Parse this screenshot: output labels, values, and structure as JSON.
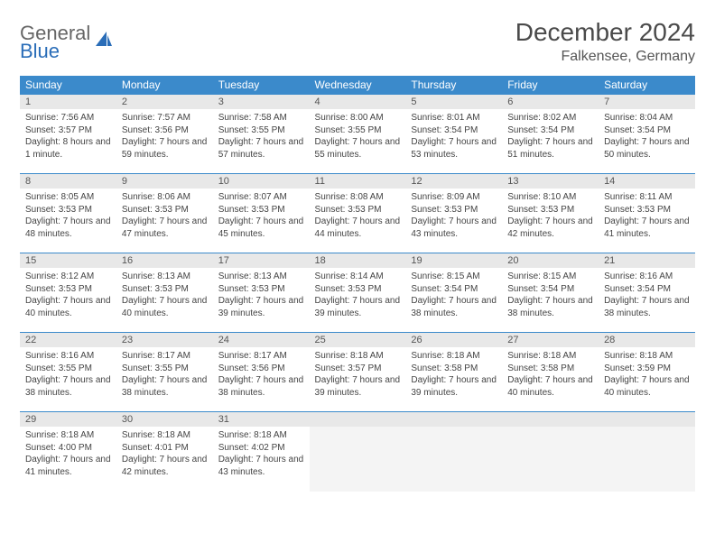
{
  "logo": {
    "line1": "General",
    "line2": "Blue"
  },
  "title": "December 2024",
  "location": "Falkensee, Germany",
  "colors": {
    "header_bg": "#3b8acb",
    "header_text": "#ffffff",
    "daynum_bg": "#e8e8e8",
    "border": "#3b8acb",
    "logo_gray": "#666666",
    "logo_blue": "#2a6db8"
  },
  "day_headers": [
    "Sunday",
    "Monday",
    "Tuesday",
    "Wednesday",
    "Thursday",
    "Friday",
    "Saturday"
  ],
  "weeks": [
    [
      {
        "num": "1",
        "sunrise": "Sunrise: 7:56 AM",
        "sunset": "Sunset: 3:57 PM",
        "daylight": "Daylight: 8 hours and 1 minute."
      },
      {
        "num": "2",
        "sunrise": "Sunrise: 7:57 AM",
        "sunset": "Sunset: 3:56 PM",
        "daylight": "Daylight: 7 hours and 59 minutes."
      },
      {
        "num": "3",
        "sunrise": "Sunrise: 7:58 AM",
        "sunset": "Sunset: 3:55 PM",
        "daylight": "Daylight: 7 hours and 57 minutes."
      },
      {
        "num": "4",
        "sunrise": "Sunrise: 8:00 AM",
        "sunset": "Sunset: 3:55 PM",
        "daylight": "Daylight: 7 hours and 55 minutes."
      },
      {
        "num": "5",
        "sunrise": "Sunrise: 8:01 AM",
        "sunset": "Sunset: 3:54 PM",
        "daylight": "Daylight: 7 hours and 53 minutes."
      },
      {
        "num": "6",
        "sunrise": "Sunrise: 8:02 AM",
        "sunset": "Sunset: 3:54 PM",
        "daylight": "Daylight: 7 hours and 51 minutes."
      },
      {
        "num": "7",
        "sunrise": "Sunrise: 8:04 AM",
        "sunset": "Sunset: 3:54 PM",
        "daylight": "Daylight: 7 hours and 50 minutes."
      }
    ],
    [
      {
        "num": "8",
        "sunrise": "Sunrise: 8:05 AM",
        "sunset": "Sunset: 3:53 PM",
        "daylight": "Daylight: 7 hours and 48 minutes."
      },
      {
        "num": "9",
        "sunrise": "Sunrise: 8:06 AM",
        "sunset": "Sunset: 3:53 PM",
        "daylight": "Daylight: 7 hours and 47 minutes."
      },
      {
        "num": "10",
        "sunrise": "Sunrise: 8:07 AM",
        "sunset": "Sunset: 3:53 PM",
        "daylight": "Daylight: 7 hours and 45 minutes."
      },
      {
        "num": "11",
        "sunrise": "Sunrise: 8:08 AM",
        "sunset": "Sunset: 3:53 PM",
        "daylight": "Daylight: 7 hours and 44 minutes."
      },
      {
        "num": "12",
        "sunrise": "Sunrise: 8:09 AM",
        "sunset": "Sunset: 3:53 PM",
        "daylight": "Daylight: 7 hours and 43 minutes."
      },
      {
        "num": "13",
        "sunrise": "Sunrise: 8:10 AM",
        "sunset": "Sunset: 3:53 PM",
        "daylight": "Daylight: 7 hours and 42 minutes."
      },
      {
        "num": "14",
        "sunrise": "Sunrise: 8:11 AM",
        "sunset": "Sunset: 3:53 PM",
        "daylight": "Daylight: 7 hours and 41 minutes."
      }
    ],
    [
      {
        "num": "15",
        "sunrise": "Sunrise: 8:12 AM",
        "sunset": "Sunset: 3:53 PM",
        "daylight": "Daylight: 7 hours and 40 minutes."
      },
      {
        "num": "16",
        "sunrise": "Sunrise: 8:13 AM",
        "sunset": "Sunset: 3:53 PM",
        "daylight": "Daylight: 7 hours and 40 minutes."
      },
      {
        "num": "17",
        "sunrise": "Sunrise: 8:13 AM",
        "sunset": "Sunset: 3:53 PM",
        "daylight": "Daylight: 7 hours and 39 minutes."
      },
      {
        "num": "18",
        "sunrise": "Sunrise: 8:14 AM",
        "sunset": "Sunset: 3:53 PM",
        "daylight": "Daylight: 7 hours and 39 minutes."
      },
      {
        "num": "19",
        "sunrise": "Sunrise: 8:15 AM",
        "sunset": "Sunset: 3:54 PM",
        "daylight": "Daylight: 7 hours and 38 minutes."
      },
      {
        "num": "20",
        "sunrise": "Sunrise: 8:15 AM",
        "sunset": "Sunset: 3:54 PM",
        "daylight": "Daylight: 7 hours and 38 minutes."
      },
      {
        "num": "21",
        "sunrise": "Sunrise: 8:16 AM",
        "sunset": "Sunset: 3:54 PM",
        "daylight": "Daylight: 7 hours and 38 minutes."
      }
    ],
    [
      {
        "num": "22",
        "sunrise": "Sunrise: 8:16 AM",
        "sunset": "Sunset: 3:55 PM",
        "daylight": "Daylight: 7 hours and 38 minutes."
      },
      {
        "num": "23",
        "sunrise": "Sunrise: 8:17 AM",
        "sunset": "Sunset: 3:55 PM",
        "daylight": "Daylight: 7 hours and 38 minutes."
      },
      {
        "num": "24",
        "sunrise": "Sunrise: 8:17 AM",
        "sunset": "Sunset: 3:56 PM",
        "daylight": "Daylight: 7 hours and 38 minutes."
      },
      {
        "num": "25",
        "sunrise": "Sunrise: 8:18 AM",
        "sunset": "Sunset: 3:57 PM",
        "daylight": "Daylight: 7 hours and 39 minutes."
      },
      {
        "num": "26",
        "sunrise": "Sunrise: 8:18 AM",
        "sunset": "Sunset: 3:58 PM",
        "daylight": "Daylight: 7 hours and 39 minutes."
      },
      {
        "num": "27",
        "sunrise": "Sunrise: 8:18 AM",
        "sunset": "Sunset: 3:58 PM",
        "daylight": "Daylight: 7 hours and 40 minutes."
      },
      {
        "num": "28",
        "sunrise": "Sunrise: 8:18 AM",
        "sunset": "Sunset: 3:59 PM",
        "daylight": "Daylight: 7 hours and 40 minutes."
      }
    ],
    [
      {
        "num": "29",
        "sunrise": "Sunrise: 8:18 AM",
        "sunset": "Sunset: 4:00 PM",
        "daylight": "Daylight: 7 hours and 41 minutes."
      },
      {
        "num": "30",
        "sunrise": "Sunrise: 8:18 AM",
        "sunset": "Sunset: 4:01 PM",
        "daylight": "Daylight: 7 hours and 42 minutes."
      },
      {
        "num": "31",
        "sunrise": "Sunrise: 8:18 AM",
        "sunset": "Sunset: 4:02 PM",
        "daylight": "Daylight: 7 hours and 43 minutes."
      },
      {
        "empty": true
      },
      {
        "empty": true
      },
      {
        "empty": true
      },
      {
        "empty": true
      }
    ]
  ]
}
